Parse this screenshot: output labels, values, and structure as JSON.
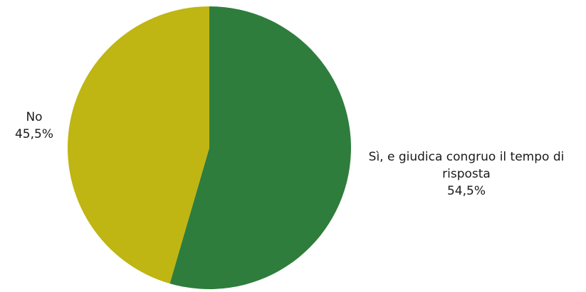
{
  "chart_data": {
    "type": "pie",
    "slices": [
      {
        "label": "Sì, e giudica congruo il tempo di risposta",
        "value": 54.5,
        "value_label": "54,5%",
        "color": "#2e7d3c"
      },
      {
        "label": "No",
        "value": 45.5,
        "value_label": "45,5%",
        "color": "#bfb513"
      }
    ],
    "start_angle": "12 o'clock",
    "direction": "clockwise",
    "legend": "none",
    "labels": "outside"
  }
}
